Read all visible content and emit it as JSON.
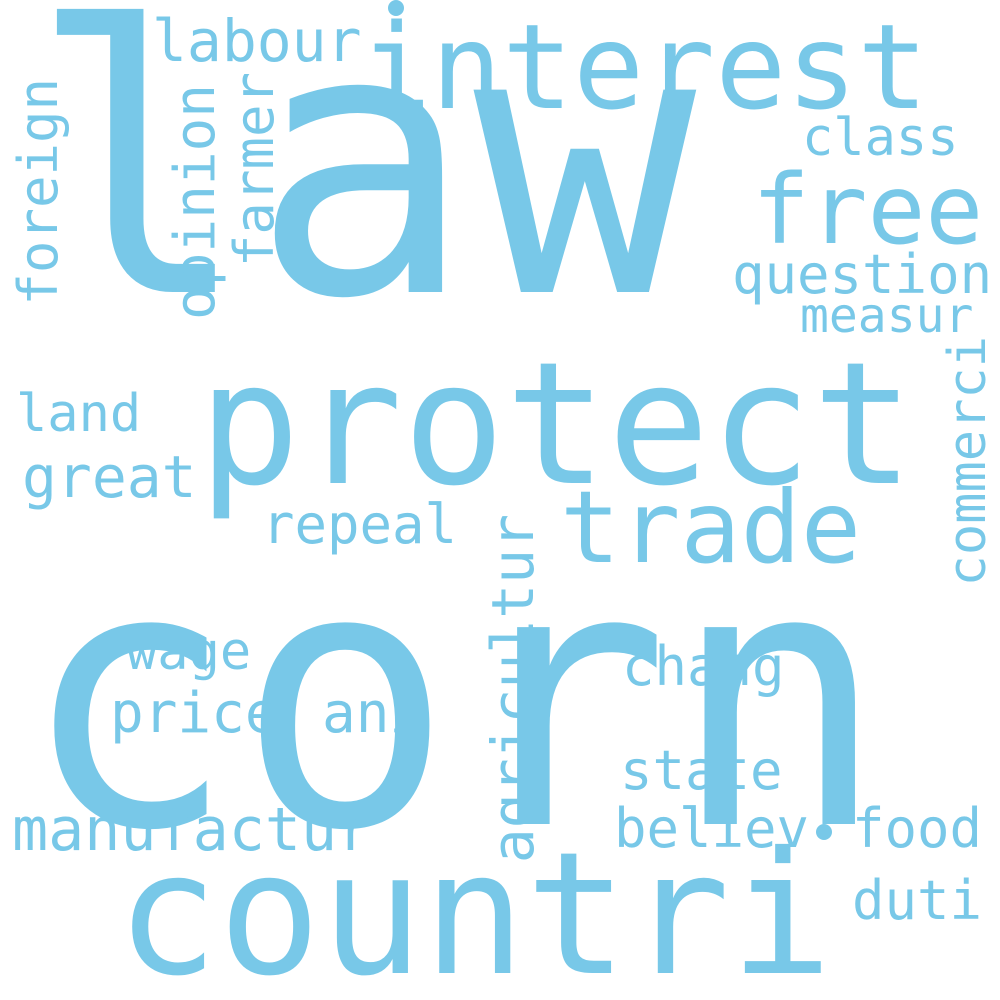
{
  "word_color": "#78c8e8",
  "background": "#ffffff",
  "words": {
    "law": "law",
    "corn": "corn",
    "protect": "protect",
    "countri": "countri",
    "interest": "interest",
    "trade": "trade",
    "free": "free",
    "labour": "labour",
    "class": "class",
    "question": "question",
    "measur": "measur",
    "foreign": "foreign",
    "opinion": "opinion",
    "farmer": "farmer",
    "land": "land",
    "great": "great",
    "repeal": "repeal",
    "commerci": "commerci",
    "agricultur": "agricultur",
    "wage": "wage",
    "price": "price",
    "ani": "ani",
    "chang": "chang",
    "state": "state",
    "manufactur": "manufactur",
    "believ": "believ",
    "food": "food",
    "duti": "duti"
  }
}
